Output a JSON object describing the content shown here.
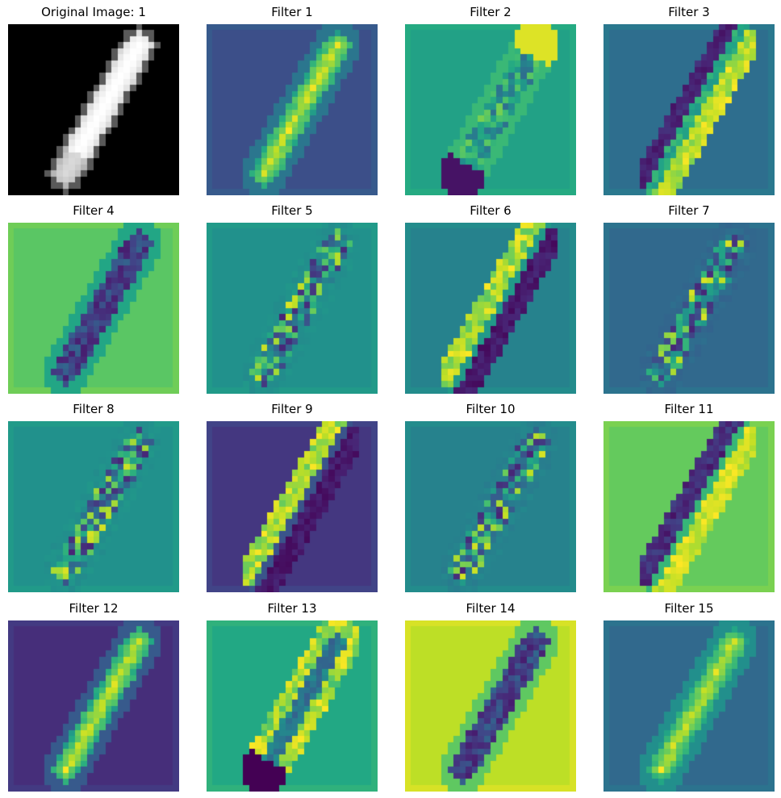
{
  "figure": {
    "background": "#ffffff",
    "panels": [
      {
        "title": "Original Image: 1",
        "kind": "original",
        "base_color": "#000000"
      },
      {
        "title": "Filter 1",
        "kind": "feature-map",
        "base_color": "#3b4f8a",
        "fg_pattern": "bright-core"
      },
      {
        "title": "Filter 2",
        "kind": "feature-map",
        "base_color": "#22a085",
        "fg_pattern": "edge-top"
      },
      {
        "title": "Filter 3",
        "kind": "feature-map",
        "base_color": "#2d6e8e",
        "fg_pattern": "bright-right-edge"
      },
      {
        "title": "Filter 4",
        "kind": "feature-map",
        "base_color": "#5cc864",
        "fg_pattern": "dark-core"
      },
      {
        "title": "Filter 5",
        "kind": "feature-map",
        "base_color": "#21918c",
        "fg_pattern": "mixed"
      },
      {
        "title": "Filter 6",
        "kind": "feature-map",
        "base_color": "#26828e",
        "fg_pattern": "bright-left-dark-right"
      },
      {
        "title": "Filter 7",
        "kind": "feature-map",
        "base_color": "#31688e",
        "fg_pattern": "mixed"
      },
      {
        "title": "Filter 8",
        "kind": "feature-map",
        "base_color": "#21918c",
        "fg_pattern": "mixed"
      },
      {
        "title": "Filter 9",
        "kind": "feature-map",
        "base_color": "#453781",
        "fg_pattern": "bright-left-dark-right"
      },
      {
        "title": "Filter 10",
        "kind": "feature-map",
        "base_color": "#26828e",
        "fg_pattern": "mixed"
      },
      {
        "title": "Filter 11",
        "kind": "feature-map",
        "base_color": "#63cb5f",
        "fg_pattern": "dark-left-bright-right"
      },
      {
        "title": "Filter 12",
        "kind": "feature-map",
        "base_color": "#472d7b",
        "fg_pattern": "bright-core"
      },
      {
        "title": "Filter 13",
        "kind": "feature-map",
        "base_color": "#22a884",
        "fg_pattern": "edge-outline"
      },
      {
        "title": "Filter 14",
        "kind": "feature-map",
        "base_color": "#bddf26",
        "fg_pattern": "dark-core"
      },
      {
        "title": "Filter 15",
        "kind": "feature-map",
        "base_color": "#31688e",
        "fg_pattern": "bright-core"
      }
    ]
  }
}
